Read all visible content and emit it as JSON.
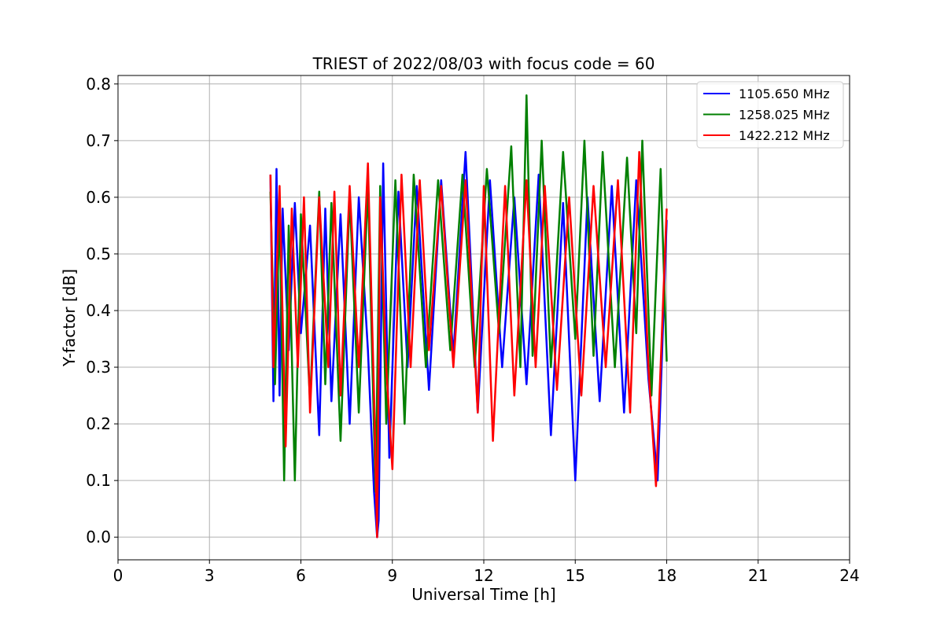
{
  "chart_data": {
    "type": "line",
    "title": "TRIEST of 2022/08/03 with focus code = 60",
    "xlabel": "Universal Time [h]",
    "ylabel": "Y-factor [dB]",
    "xlim": [
      0,
      24
    ],
    "ylim": [
      -0.04,
      0.815
    ],
    "xticks": [
      0,
      3,
      6,
      9,
      12,
      15,
      18,
      21,
      24
    ],
    "xtick_labels": [
      "0",
      "3",
      "6",
      "9",
      "12",
      "15",
      "18",
      "21",
      "24"
    ],
    "yticks": [
      0.0,
      0.1,
      0.2,
      0.3,
      0.4,
      0.5,
      0.6,
      0.7,
      0.8
    ],
    "ytick_labels": [
      "0.0",
      "0.1",
      "0.2",
      "0.3",
      "0.4",
      "0.5",
      "0.6",
      "0.7",
      "0.8"
    ],
    "grid": true,
    "legend_position": "top-right",
    "series": [
      {
        "name": "1105.650 MHz",
        "color": "#0000ff",
        "x": [
          5.0,
          5.1,
          5.2,
          5.3,
          5.4,
          5.6,
          5.8,
          6.0,
          6.3,
          6.6,
          6.8,
          7.0,
          7.3,
          7.6,
          7.9,
          8.2,
          8.4,
          8.5,
          8.55,
          8.7,
          8.9,
          9.2,
          9.5,
          9.8,
          10.2,
          10.6,
          11.0,
          11.4,
          11.8,
          12.2,
          12.6,
          13.0,
          13.4,
          13.8,
          14.2,
          14.6,
          15.0,
          15.4,
          15.8,
          16.2,
          16.6,
          17.0,
          17.4,
          17.7,
          18.0
        ],
        "values": [
          0.64,
          0.24,
          0.65,
          0.25,
          0.58,
          0.33,
          0.59,
          0.36,
          0.55,
          0.18,
          0.58,
          0.24,
          0.57,
          0.2,
          0.6,
          0.33,
          0.08,
          0.0,
          0.03,
          0.66,
          0.14,
          0.61,
          0.3,
          0.62,
          0.26,
          0.63,
          0.32,
          0.68,
          0.22,
          0.63,
          0.3,
          0.6,
          0.27,
          0.64,
          0.18,
          0.59,
          0.1,
          0.6,
          0.24,
          0.62,
          0.22,
          0.63,
          0.28,
          0.1,
          0.56
        ]
      },
      {
        "name": "1258.025 MHz",
        "color": "#008000",
        "x": [
          5.0,
          5.15,
          5.3,
          5.45,
          5.6,
          5.8,
          6.0,
          6.3,
          6.6,
          6.8,
          7.0,
          7.3,
          7.6,
          7.9,
          8.2,
          8.45,
          8.6,
          8.8,
          9.1,
          9.4,
          9.7,
          10.1,
          10.5,
          10.9,
          11.3,
          11.7,
          12.1,
          12.5,
          12.9,
          13.2,
          13.4,
          13.6,
          13.9,
          14.2,
          14.6,
          15.0,
          15.3,
          15.6,
          15.9,
          16.3,
          16.7,
          17.0,
          17.2,
          17.5,
          17.8,
          18.0
        ],
        "values": [
          0.61,
          0.27,
          0.58,
          0.1,
          0.55,
          0.1,
          0.57,
          0.24,
          0.61,
          0.27,
          0.59,
          0.17,
          0.6,
          0.22,
          0.62,
          0.08,
          0.62,
          0.2,
          0.63,
          0.2,
          0.64,
          0.3,
          0.63,
          0.33,
          0.64,
          0.3,
          0.65,
          0.36,
          0.69,
          0.3,
          0.78,
          0.32,
          0.7,
          0.3,
          0.68,
          0.35,
          0.7,
          0.32,
          0.68,
          0.3,
          0.67,
          0.36,
          0.7,
          0.25,
          0.65,
          0.31
        ]
      },
      {
        "name": "1422.212 MHz",
        "color": "#ff0000",
        "x": [
          5.0,
          5.1,
          5.3,
          5.5,
          5.7,
          5.9,
          6.1,
          6.3,
          6.6,
          6.9,
          7.1,
          7.3,
          7.6,
          7.9,
          8.2,
          8.4,
          8.5,
          8.6,
          8.8,
          9.0,
          9.3,
          9.6,
          9.9,
          10.2,
          10.6,
          11.0,
          11.4,
          11.8,
          12.0,
          12.3,
          12.7,
          13.0,
          13.4,
          13.7,
          14.0,
          14.4,
          14.8,
          15.2,
          15.6,
          16.0,
          16.4,
          16.8,
          17.1,
          17.4,
          17.65,
          18.0
        ],
        "values": [
          0.64,
          0.3,
          0.62,
          0.16,
          0.58,
          0.3,
          0.6,
          0.22,
          0.6,
          0.3,
          0.61,
          0.25,
          0.62,
          0.3,
          0.66,
          0.25,
          0.0,
          0.6,
          0.3,
          0.12,
          0.64,
          0.3,
          0.63,
          0.33,
          0.62,
          0.3,
          0.63,
          0.22,
          0.62,
          0.17,
          0.62,
          0.25,
          0.63,
          0.3,
          0.62,
          0.26,
          0.6,
          0.25,
          0.62,
          0.3,
          0.63,
          0.22,
          0.68,
          0.3,
          0.09,
          0.58
        ]
      }
    ]
  }
}
